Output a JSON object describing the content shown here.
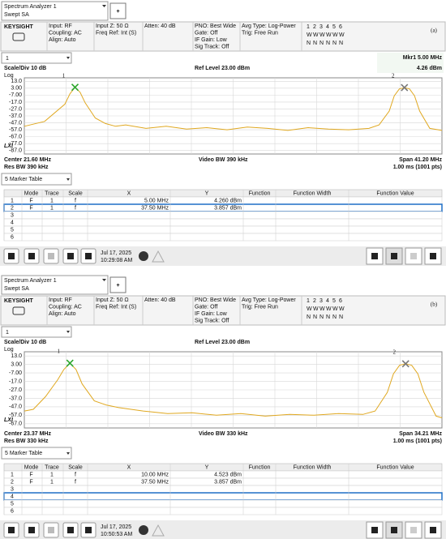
{
  "panels": [
    {
      "app": {
        "name": "Spectrum Analyzer 1",
        "mode": "Swept SA",
        "add": "+"
      },
      "brand": "KEYSIGHT",
      "settings": [
        [
          "Input: RF",
          "Coupling: AC",
          "Align: Auto"
        ],
        [
          "Input Z: 50 Ω",
          "Freq Ref: Int (S)"
        ],
        [
          "Atten: 40 dB"
        ],
        [
          "PNO: Best Wide",
          "Gate: Off",
          "IF Gain: Low",
          "Sig Track: Off"
        ],
        [
          "Avg Type: Log-Power",
          "Trig: Free Run"
        ]
      ],
      "trace_status": [
        [
          "1",
          "2",
          "3",
          "4",
          "5",
          "6"
        ],
        [
          "W",
          "W",
          "W",
          "W",
          "W",
          "W"
        ],
        [
          "N",
          "N",
          "N",
          "N",
          "N",
          "N"
        ]
      ],
      "label": "(a)",
      "window": "1",
      "marker_readout": [
        "Mkr1  5.00 MHz",
        "4.26 dBm"
      ],
      "scale": "Scale/Div 10 dB",
      "ref_level": "Ref Level 23.00 dBm",
      "log": "Log",
      "chart": {
        "type": "line",
        "color": "#e0a820",
        "grid": true,
        "xlim": [
          0,
          41.2
        ],
        "ylim": [
          -92,
          18
        ],
        "yticks": [
          {
            "value": 13,
            "label": "13.0"
          },
          {
            "value": 3,
            "label": "3.00"
          },
          {
            "value": -7,
            "label": "-7.00"
          },
          {
            "value": -17,
            "label": "-17.0"
          },
          {
            "value": -27,
            "label": "-27.0"
          },
          {
            "value": -37,
            "label": "-37.0"
          },
          {
            "value": -47,
            "label": "-47.0"
          },
          {
            "value": -57,
            "label": "-57.0"
          },
          {
            "value": -67,
            "label": "-67.0"
          },
          {
            "value": -77,
            "label": "-77.0"
          },
          {
            "value": -87,
            "label": "-87.0"
          }
        ],
        "x": [
          0,
          2,
          4,
          4.5,
          5,
          5.5,
          6,
          7,
          8,
          9,
          10,
          12,
          14,
          16,
          18,
          20,
          22,
          24,
          26,
          28,
          30,
          32,
          34,
          35,
          36,
          36.5,
          37,
          37.5,
          38,
          38.5,
          39,
          40,
          41.2
        ],
        "values": [
          -52,
          -45,
          -20,
          -5,
          4.26,
          -3,
          -18,
          -40,
          -48,
          -52,
          -50,
          -55,
          -52,
          -56,
          -54,
          -57,
          -53,
          -55,
          -58,
          -54,
          -56,
          -57,
          -55,
          -50,
          -30,
          -8,
          2,
          3.86,
          2,
          -8,
          -30,
          -55,
          -58
        ],
        "markers": [
          {
            "label": "1",
            "x": 5,
            "y": 4.26
          },
          {
            "label": "2",
            "x": 37.5,
            "y": 3.86
          }
        ]
      },
      "lxi": "LXI",
      "footer": [
        "Center 21.60 MHz",
        "Res BW 390 kHz",
        "Video BW 390 kHz",
        "Span 41.20 MHz",
        "1.00 ms (1001 pts)"
      ],
      "table_select": "5 Marker Table",
      "selected_row": 1,
      "table": {
        "headers": [
          "Mode",
          "Trace",
          "Scale",
          "X",
          "Y",
          "Function",
          "Function Width",
          "Function Value"
        ],
        "rows": [
          [
            "1",
            "F",
            "1",
            "f",
            "5.00 MHz",
            "4.260 dBm"
          ],
          [
            "2",
            "F",
            "1",
            "f",
            "37.50 MHz",
            "3.857 dBm"
          ],
          [
            "3"
          ],
          [
            "4"
          ],
          [
            "5"
          ],
          [
            "6"
          ]
        ]
      },
      "taskbar": {
        "date": "Jul 17, 2025",
        "time": "10:29:08 AM"
      }
    },
    {
      "app": {
        "name": "Spectrum Analyzer 1",
        "mode": "Swept SA",
        "add": "+"
      },
      "brand": "KEYSIGHT",
      "settings": [
        [
          "Input: RF",
          "Coupling: AC",
          "Align: Auto"
        ],
        [
          "Input Z: 50 Ω",
          "Freq Ref: Int (S)"
        ],
        [
          "Atten: 40 dB"
        ],
        [
          "PNO: Best Wide",
          "Gate: Off",
          "IF Gain: Low",
          "Sig Track: Off"
        ],
        [
          "Avg Type: Log-Power",
          "Trig: Free Run"
        ]
      ],
      "trace_status": [
        [
          "1",
          "2",
          "3",
          "4",
          "5",
          "6"
        ],
        [
          "W",
          "W",
          "W",
          "W",
          "W",
          "W"
        ],
        [
          "N",
          "N",
          "N",
          "N",
          "N",
          "N"
        ]
      ],
      "label": "(b)",
      "window": "1",
      "scale": "Scale/Div 10 dB",
      "ref_level": "Ref Level 23.00 dBm",
      "log": "Log",
      "chart": {
        "type": "line",
        "color": "#e0a820",
        "grid": true,
        "xlim": [
          6.265,
          40.475
        ],
        "ylim": [
          -72,
          18
        ],
        "yticks": [
          {
            "value": 13,
            "label": "13.0"
          },
          {
            "value": 3,
            "label": "3.00"
          },
          {
            "value": -7,
            "label": "-7.00"
          },
          {
            "value": -17,
            "label": "-17.0"
          },
          {
            "value": -27,
            "label": "-27.0"
          },
          {
            "value": -37,
            "label": "-37.0"
          },
          {
            "value": -47,
            "label": "-47.0"
          },
          {
            "value": -57,
            "label": "-57.0"
          },
          {
            "value": -67,
            "label": "-67.0"
          }
        ],
        "x": [
          6.27,
          7,
          8,
          9,
          9.5,
          10,
          10.5,
          11,
          12,
          13,
          14,
          16,
          18,
          20,
          22,
          24,
          26,
          28,
          30,
          32,
          34,
          35,
          36,
          36.5,
          37,
          37.5,
          38,
          38.5,
          39,
          40,
          40.48
        ],
        "values": [
          -52,
          -50,
          -35,
          -15,
          -3,
          4.52,
          -3,
          -20,
          -40,
          -45,
          -48,
          -52,
          -55,
          -54,
          -57,
          -55,
          -58,
          -56,
          -57,
          -55,
          -56,
          -52,
          -30,
          -8,
          2,
          3.86,
          2,
          -8,
          -30,
          -58,
          -60
        ],
        "markers": [
          {
            "label": "1",
            "x": 10,
            "y": 4.52
          },
          {
            "label": "2",
            "x": 37.5,
            "y": 3.86
          }
        ]
      },
      "lxi": "LXI",
      "footer": [
        "Center 23.37 MHz",
        "Res BW 330 kHz",
        "Video BW 330 kHz",
        "Span 34.21 MHz",
        "1.00 ms (1001 pts)"
      ],
      "table_select": "5 Marker Table",
      "selected_row": 3,
      "table": {
        "headers": [
          "Mode",
          "Trace",
          "Scale",
          "X",
          "Y",
          "Function",
          "Function Width",
          "Function Value"
        ],
        "rows": [
          [
            "1",
            "F",
            "1",
            "f",
            "10.00 MHz",
            "4.523 dBm"
          ],
          [
            "2",
            "F",
            "1",
            "f",
            "37.50 MHz",
            "3.857 dBm"
          ],
          [
            "3"
          ],
          [
            "4"
          ],
          [
            "5"
          ],
          [
            "6"
          ]
        ]
      },
      "taskbar": {
        "date": "Jul 17, 2025",
        "time": "10:50:53 AM"
      }
    }
  ]
}
